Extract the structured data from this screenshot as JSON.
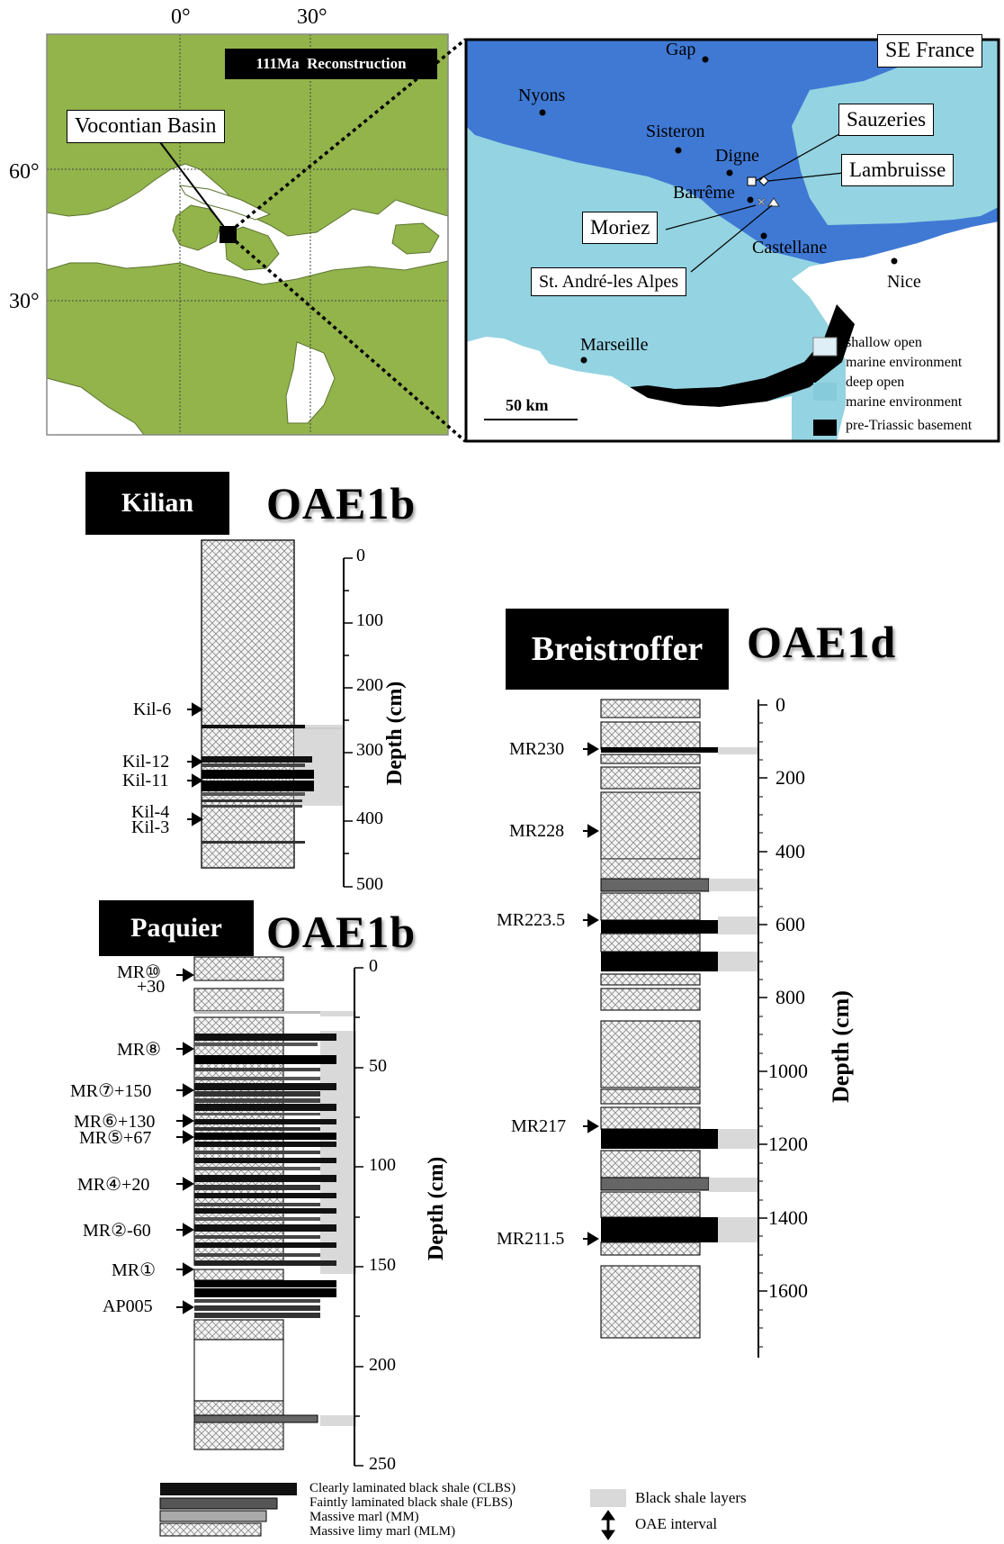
{
  "world_map": {
    "lon_labels": [
      "0°",
      "30°"
    ],
    "lat_labels": [
      "60°",
      "30°"
    ],
    "reconstruction_label": "111Ma  Reconstruction",
    "basin_label": "Vocontian Basin",
    "colors": {
      "land": "#92b44b",
      "sea": "#ffffff"
    }
  },
  "regional_map": {
    "title": "SE France",
    "towns": [
      "Gap",
      "Nyons",
      "Sisteron",
      "Digne",
      "Barrême",
      "Castellane",
      "Nice",
      "Marseille"
    ],
    "sites": [
      "Sauzeries",
      "Lambruisse",
      "Moriez",
      "St. André-les Alpes"
    ],
    "scale": "50 km",
    "legend": [
      {
        "label": "shallow open",
        "label2": "marine environment",
        "color": "#dfeff8"
      },
      {
        "label": "deep open",
        "label2": "marine environment",
        "color": "#86cbdc"
      },
      {
        "label": "pre-Triassic basement",
        "label2": "",
        "color": "#000000"
      }
    ],
    "colors": {
      "deep_blue": "#3f79d4",
      "light_blue": "#94d3e1"
    }
  },
  "sections": {
    "kilian": {
      "name": "Kilian",
      "event": "OAE1b",
      "axis_label": "Depth (cm)",
      "ticks": [
        "0",
        "100",
        "200",
        "300",
        "400",
        "500"
      ],
      "samples": [
        "Kil-6",
        "Kil-12",
        "Kil-11",
        "Kil-4",
        "Kil-3"
      ]
    },
    "paquier": {
      "name": "Paquier",
      "event": "OAE1b",
      "axis_label": "Depth (cm)",
      "ticks": [
        "0",
        "50",
        "100",
        "150",
        "200",
        "250"
      ],
      "samples": [
        "MR⑩",
        "+30",
        "MR⑧",
        "MR⑦+150",
        "MR⑥+130",
        "MR⑤+67",
        "MR④+20",
        "MR②-60",
        "MR①",
        "AP005"
      ]
    },
    "breistroffer": {
      "name": "Breistroffer",
      "event": "OAE1d",
      "axis_label": "Depth (cm)",
      "ticks": [
        "0",
        "200",
        "400",
        "600",
        "800",
        "1000",
        "1200",
        "1400",
        "1600"
      ],
      "samples": [
        "MR230",
        "MR228",
        "MR223.5",
        "MR217",
        "MR211.5"
      ]
    }
  },
  "legend": {
    "clbs": "Clearly laminated black shale (CLBS)",
    "flbs": "Faintly laminated black shale (FLBS)",
    "mm": "Massive marl (MM)",
    "mlm": "Massive limy marl (MLM)",
    "bsl": "Black shale layers",
    "oae": "OAE interval"
  }
}
